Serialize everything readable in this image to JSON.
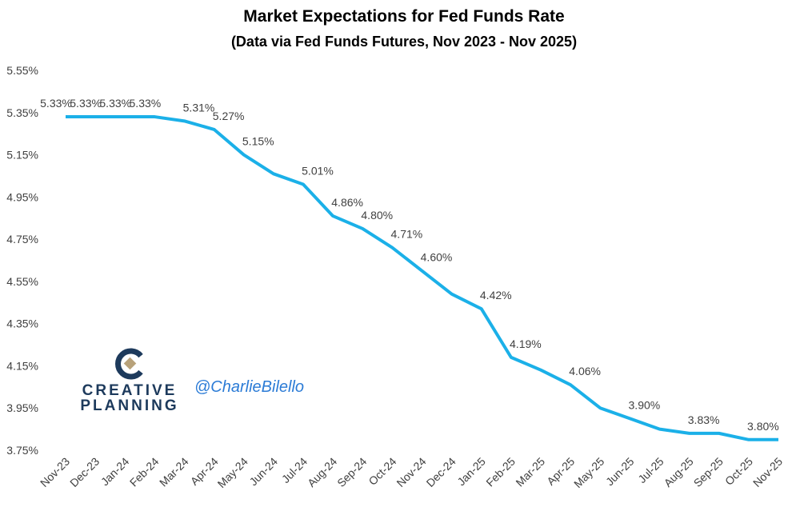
{
  "chart_data": {
    "type": "line",
    "title": "Market Expectations for Fed Funds Rate",
    "subtitle": "(Data via Fed Funds Futures, Nov 2023 - Nov 2025)",
    "categories": [
      "Nov-23",
      "Dec-23",
      "Jan-24",
      "Feb-24",
      "Mar-24",
      "Apr-24",
      "May-24",
      "Jun-24",
      "Jul-24",
      "Aug-24",
      "Sep-24",
      "Oct-24",
      "Nov-24",
      "Dec-24",
      "Jan-25",
      "Feb-25",
      "Mar-25",
      "Apr-25",
      "May-25",
      "Jun-25",
      "Jul-25",
      "Aug-25",
      "Sep-25",
      "Oct-25",
      "Nov-25"
    ],
    "series": [
      {
        "name": "Fed Funds Rate",
        "color": "#1bb0e8",
        "values": [
          5.33,
          5.33,
          5.33,
          5.33,
          5.31,
          5.27,
          5.15,
          5.06,
          5.01,
          4.86,
          4.8,
          4.71,
          4.6,
          4.49,
          4.42,
          4.19,
          4.13,
          4.06,
          3.95,
          3.9,
          3.85,
          3.83,
          3.83,
          3.8,
          3.8
        ],
        "value_labels": [
          "5.33%",
          "5.33%",
          "5.33%",
          "5.33%",
          "5.31%",
          "5.27%",
          "5.15%",
          null,
          "5.01%",
          "4.86%",
          "4.80%",
          "4.71%",
          "4.60%",
          null,
          "4.42%",
          "4.19%",
          null,
          "4.06%",
          null,
          "3.90%",
          null,
          "3.83%",
          null,
          "3.80%",
          null
        ]
      }
    ],
    "ylim": [
      3.75,
      5.55
    ],
    "yticks": [
      {
        "value": 3.75,
        "label": "3.75%"
      },
      {
        "value": 3.95,
        "label": "3.95%"
      },
      {
        "value": 4.15,
        "label": "4.15%"
      },
      {
        "value": 4.35,
        "label": "4.35%"
      },
      {
        "value": 4.55,
        "label": "4.55%"
      },
      {
        "value": 4.75,
        "label": "4.75%"
      },
      {
        "value": 4.95,
        "label": "4.95%"
      },
      {
        "value": 5.15,
        "label": "5.15%"
      },
      {
        "value": 5.35,
        "label": "5.35%"
      },
      {
        "value": 5.55,
        "label": "5.55%"
      }
    ],
    "grid": false,
    "branding": {
      "logo_lines": [
        "CREATIVE",
        "PLANNING"
      ],
      "handle": "@CharlieBilello"
    }
  }
}
